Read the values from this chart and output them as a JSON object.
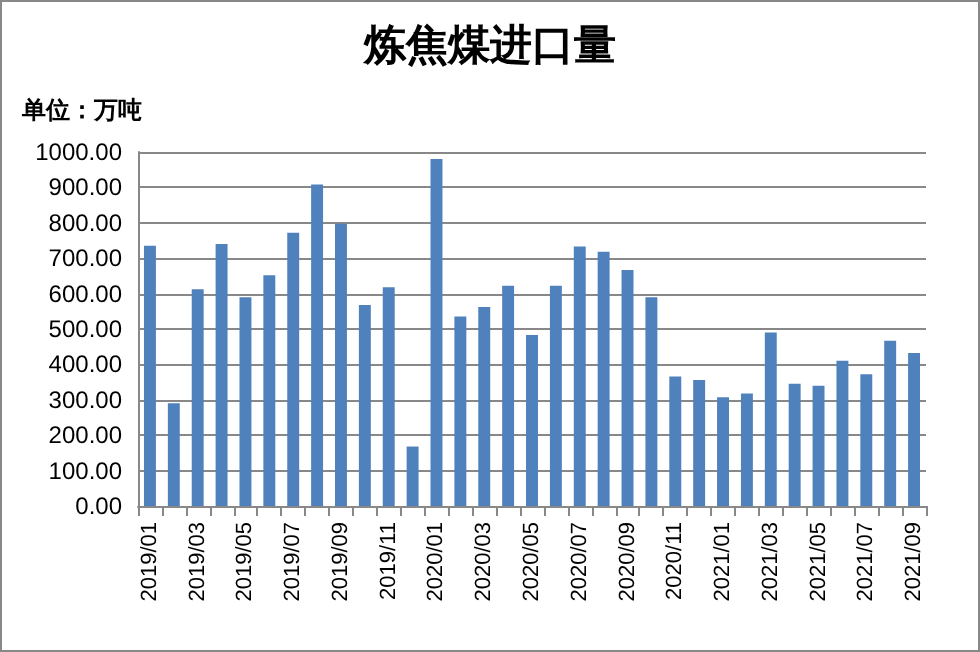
{
  "chart_data": {
    "type": "bar",
    "title": "炼焦煤进口量",
    "ylabel": "单位：万吨",
    "categories": [
      "2019/01",
      null,
      "2019/03",
      null,
      "2019/05",
      null,
      "2019/07",
      null,
      "2019/09",
      null,
      "2019/11",
      null,
      "2020/01",
      null,
      "2020/03",
      null,
      "2020/05",
      null,
      "2020/07",
      null,
      "2020/09",
      null,
      "2020/11",
      null,
      "2021/01",
      null,
      "2021/03",
      null,
      "2021/05",
      null,
      "2021/07",
      null,
      "2021/09"
    ],
    "values": [
      735,
      290,
      612,
      740,
      590,
      652,
      772,
      908,
      797,
      568,
      618,
      168,
      980,
      535,
      562,
      622,
      483,
      622,
      733,
      718,
      667,
      590,
      366,
      356,
      307,
      318,
      490,
      345,
      340,
      410,
      372,
      467,
      432
    ],
    "color": "#4f81bd",
    "ylim": [
      0,
      1000
    ],
    "yticks": [
      {
        "value": 0,
        "label": "0.00"
      },
      {
        "value": 100,
        "label": "100.00"
      },
      {
        "value": 200,
        "label": "200.00"
      },
      {
        "value": 300,
        "label": "300.00"
      },
      {
        "value": 400,
        "label": "400.00"
      },
      {
        "value": 500,
        "label": "500.00"
      },
      {
        "value": 600,
        "label": "600.00"
      },
      {
        "value": 700,
        "label": "700.00"
      },
      {
        "value": 800,
        "label": "800.00"
      },
      {
        "value": 900,
        "label": "900.00"
      },
      {
        "value": 1000,
        "label": "1000.00"
      }
    ],
    "grid": "y"
  }
}
